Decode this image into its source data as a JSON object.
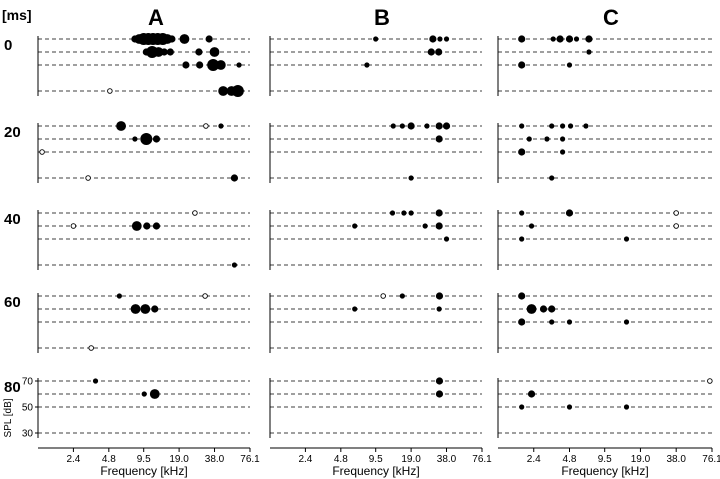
{
  "figure": {
    "time_unit_label": "[ms]",
    "column_labels": [
      "A",
      "B",
      "C"
    ],
    "time_labels": [
      "0",
      "20",
      "40",
      "60",
      "80"
    ],
    "xlabel": "Frequency [kHz]",
    "ylabel": "SPL [dB]",
    "colors": {
      "ink": "#000000",
      "background": "#ffffff"
    }
  },
  "chart_data": {
    "type": "scatter",
    "layout": "3 columns (A, B, C) x 5 time windows (0, 20, 40, 60, 80 ms)",
    "x_ticks": [
      "2.4",
      "4.8",
      "9.5",
      "19.0",
      "38.0",
      "76.1"
    ],
    "x_tick_values": [
      2.4,
      4.8,
      9.5,
      19.0,
      38.0,
      76.1
    ],
    "x_scale": "log",
    "xlim": [
      1.2,
      76.1
    ],
    "y_ticks": [
      "70",
      "50",
      "30"
    ],
    "y_levels": [
      70,
      60,
      50,
      30
    ],
    "ylim": [
      20,
      75
    ],
    "grid": "dashed horizontal lines at SPL levels",
    "marker_legend": "filled circle size = response strength (1-4); open circle = weak response",
    "panels": [
      {
        "column": "A",
        "time": "0",
        "points": [
          {
            "f": 8.0,
            "spl": 70,
            "s": 2
          },
          {
            "f": 8.7,
            "spl": 70,
            "s": 3
          },
          {
            "f": 9.5,
            "spl": 70,
            "s": 4
          },
          {
            "f": 10.4,
            "spl": 70,
            "s": 4
          },
          {
            "f": 11.4,
            "spl": 70,
            "s": 4
          },
          {
            "f": 12.5,
            "spl": 70,
            "s": 4
          },
          {
            "f": 13.8,
            "spl": 70,
            "s": 4
          },
          {
            "f": 15.1,
            "spl": 70,
            "s": 3
          },
          {
            "f": 16.5,
            "spl": 70,
            "s": 2
          },
          {
            "f": 21.1,
            "spl": 70,
            "s": 3
          },
          {
            "f": 34.2,
            "spl": 70,
            "s": 2
          },
          {
            "f": 10.0,
            "spl": 60,
            "s": 2
          },
          {
            "f": 11.2,
            "spl": 60,
            "s": 4
          },
          {
            "f": 12.7,
            "spl": 60,
            "s": 3
          },
          {
            "f": 14.2,
            "spl": 60,
            "s": 2
          },
          {
            "f": 16.0,
            "spl": 60,
            "s": 2
          },
          {
            "f": 28.0,
            "spl": 60,
            "s": 2
          },
          {
            "f": 38.0,
            "spl": 60,
            "s": 3
          },
          {
            "f": 21.7,
            "spl": 50,
            "s": 2
          },
          {
            "f": 28.4,
            "spl": 50,
            "s": 2
          },
          {
            "f": 37.0,
            "spl": 50,
            "s": 4
          },
          {
            "f": 43.0,
            "spl": 50,
            "s": 3
          },
          {
            "f": 61.4,
            "spl": 50,
            "s": 1
          },
          {
            "f": 4.9,
            "spl": 30,
            "s": 0
          },
          {
            "f": 45.0,
            "spl": 30,
            "s": 3
          },
          {
            "f": 53.0,
            "spl": 30,
            "s": 3
          },
          {
            "f": 60.0,
            "spl": 30,
            "s": 4
          }
        ]
      },
      {
        "column": "A",
        "time": "20",
        "points": [
          {
            "f": 6.1,
            "spl": 70,
            "s": 3
          },
          {
            "f": 32.1,
            "spl": 70,
            "s": 0
          },
          {
            "f": 43.1,
            "spl": 70,
            "s": 1
          },
          {
            "f": 8.0,
            "spl": 60,
            "s": 1
          },
          {
            "f": 10.0,
            "spl": 60,
            "s": 4
          },
          {
            "f": 12.2,
            "spl": 60,
            "s": 2
          },
          {
            "f": 1.3,
            "spl": 50,
            "s": 0
          },
          {
            "f": 3.2,
            "spl": 30,
            "s": 0
          },
          {
            "f": 56.1,
            "spl": 30,
            "s": 2
          }
        ]
      },
      {
        "column": "A",
        "time": "40",
        "points": [
          {
            "f": 25.9,
            "spl": 70,
            "s": 0
          },
          {
            "f": 2.4,
            "spl": 60,
            "s": 0
          },
          {
            "f": 8.3,
            "spl": 60,
            "s": 3
          },
          {
            "f": 10.1,
            "spl": 60,
            "s": 2
          },
          {
            "f": 12.2,
            "spl": 60,
            "s": 2
          },
          {
            "f": 56.1,
            "spl": 30,
            "s": 1
          }
        ]
      },
      {
        "column": "A",
        "time": "60",
        "points": [
          {
            "f": 5.9,
            "spl": 70,
            "s": 1
          },
          {
            "f": 31.6,
            "spl": 70,
            "s": 0
          },
          {
            "f": 8.1,
            "spl": 60,
            "s": 3
          },
          {
            "f": 9.8,
            "spl": 60,
            "s": 3
          },
          {
            "f": 11.8,
            "spl": 60,
            "s": 2
          },
          {
            "f": 3.4,
            "spl": 30,
            "s": 0
          }
        ]
      },
      {
        "column": "A",
        "time": "80",
        "points": [
          {
            "f": 3.7,
            "spl": 70,
            "s": 1
          },
          {
            "f": 9.6,
            "spl": 60,
            "s": 1
          },
          {
            "f": 11.8,
            "spl": 60,
            "s": 3
          }
        ]
      },
      {
        "column": "B",
        "time": "0",
        "points": [
          {
            "f": 9.5,
            "spl": 70,
            "s": 1
          },
          {
            "f": 29.1,
            "spl": 70,
            "s": 2
          },
          {
            "f": 33.4,
            "spl": 70,
            "s": 1
          },
          {
            "f": 38.0,
            "spl": 70,
            "s": 1
          },
          {
            "f": 28.2,
            "spl": 60,
            "s": 2
          },
          {
            "f": 32.6,
            "spl": 60,
            "s": 2
          },
          {
            "f": 8.0,
            "spl": 50,
            "s": 1
          }
        ]
      },
      {
        "column": "B",
        "time": "20",
        "points": [
          {
            "f": 13.4,
            "spl": 70,
            "s": 1
          },
          {
            "f": 16.0,
            "spl": 70,
            "s": 1
          },
          {
            "f": 19.0,
            "spl": 70,
            "s": 2
          },
          {
            "f": 25.9,
            "spl": 70,
            "s": 1
          },
          {
            "f": 32.9,
            "spl": 70,
            "s": 2
          },
          {
            "f": 38.0,
            "spl": 70,
            "s": 2
          },
          {
            "f": 32.9,
            "spl": 60,
            "s": 2
          },
          {
            "f": 19.0,
            "spl": 30,
            "s": 1
          }
        ]
      },
      {
        "column": "B",
        "time": "40",
        "points": [
          {
            "f": 13.2,
            "spl": 70,
            "s": 1
          },
          {
            "f": 16.5,
            "spl": 70,
            "s": 1
          },
          {
            "f": 19.0,
            "spl": 70,
            "s": 1
          },
          {
            "f": 32.9,
            "spl": 70,
            "s": 2
          },
          {
            "f": 6.3,
            "spl": 60,
            "s": 1
          },
          {
            "f": 25.0,
            "spl": 60,
            "s": 1
          },
          {
            "f": 32.9,
            "spl": 60,
            "s": 2
          },
          {
            "f": 38.0,
            "spl": 50,
            "s": 1
          }
        ]
      },
      {
        "column": "B",
        "time": "60",
        "points": [
          {
            "f": 11.0,
            "spl": 70,
            "s": 0
          },
          {
            "f": 16.0,
            "spl": 70,
            "s": 1
          },
          {
            "f": 33.1,
            "spl": 70,
            "s": 2
          },
          {
            "f": 6.3,
            "spl": 60,
            "s": 1
          },
          {
            "f": 32.9,
            "spl": 60,
            "s": 1
          }
        ]
      },
      {
        "column": "B",
        "time": "80",
        "points": [
          {
            "f": 33.1,
            "spl": 70,
            "s": 2
          },
          {
            "f": 33.1,
            "spl": 60,
            "s": 2
          }
        ]
      },
      {
        "column": "C",
        "time": "0",
        "points": [
          {
            "f": 1.9,
            "spl": 70,
            "s": 2
          },
          {
            "f": 3.5,
            "spl": 70,
            "s": 1
          },
          {
            "f": 4.0,
            "spl": 70,
            "s": 2
          },
          {
            "f": 4.8,
            "spl": 70,
            "s": 2
          },
          {
            "f": 5.5,
            "spl": 70,
            "s": 1
          },
          {
            "f": 7.0,
            "spl": 70,
            "s": 2
          },
          {
            "f": 7.0,
            "spl": 60,
            "s": 1
          },
          {
            "f": 1.9,
            "spl": 50,
            "s": 2
          },
          {
            "f": 4.8,
            "spl": 50,
            "s": 1
          }
        ]
      },
      {
        "column": "C",
        "time": "20",
        "points": [
          {
            "f": 1.9,
            "spl": 70,
            "s": 1
          },
          {
            "f": 3.4,
            "spl": 70,
            "s": 1
          },
          {
            "f": 4.2,
            "spl": 70,
            "s": 1
          },
          {
            "f": 4.9,
            "spl": 70,
            "s": 1
          },
          {
            "f": 6.6,
            "spl": 70,
            "s": 1
          },
          {
            "f": 2.2,
            "spl": 60,
            "s": 1
          },
          {
            "f": 3.1,
            "spl": 60,
            "s": 1
          },
          {
            "f": 4.2,
            "spl": 60,
            "s": 1
          },
          {
            "f": 1.9,
            "spl": 50,
            "s": 2
          },
          {
            "f": 4.2,
            "spl": 50,
            "s": 1
          },
          {
            "f": 3.4,
            "spl": 30,
            "s": 1
          }
        ]
      },
      {
        "column": "C",
        "time": "40",
        "points": [
          {
            "f": 1.9,
            "spl": 70,
            "s": 1
          },
          {
            "f": 4.8,
            "spl": 70,
            "s": 2
          },
          {
            "f": 38.0,
            "spl": 70,
            "s": 0
          },
          {
            "f": 2.3,
            "spl": 60,
            "s": 1
          },
          {
            "f": 38.0,
            "spl": 60,
            "s": 0
          },
          {
            "f": 1.9,
            "spl": 50,
            "s": 1
          },
          {
            "f": 14.5,
            "spl": 50,
            "s": 1
          }
        ]
      },
      {
        "column": "C",
        "time": "60",
        "points": [
          {
            "f": 1.9,
            "spl": 70,
            "s": 2
          },
          {
            "f": 2.3,
            "spl": 60,
            "s": 3
          },
          {
            "f": 2.9,
            "spl": 60,
            "s": 2
          },
          {
            "f": 3.4,
            "spl": 60,
            "s": 2
          },
          {
            "f": 1.9,
            "spl": 50,
            "s": 2
          },
          {
            "f": 3.4,
            "spl": 50,
            "s": 1
          },
          {
            "f": 4.8,
            "spl": 50,
            "s": 1
          },
          {
            "f": 14.5,
            "spl": 50,
            "s": 1
          }
        ]
      },
      {
        "column": "C",
        "time": "80",
        "points": [
          {
            "f": 73.0,
            "spl": 70,
            "s": 0
          },
          {
            "f": 2.3,
            "spl": 60,
            "s": 2
          },
          {
            "f": 1.9,
            "spl": 50,
            "s": 1
          },
          {
            "f": 4.8,
            "spl": 50,
            "s": 1
          },
          {
            "f": 14.5,
            "spl": 50,
            "s": 1
          }
        ]
      }
    ]
  }
}
